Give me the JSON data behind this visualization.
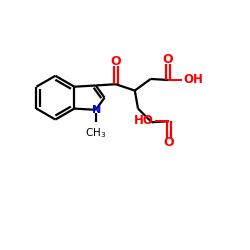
{
  "bg_color": "#ffffff",
  "bond_color": "#000000",
  "n_color": "#0000ff",
  "o_color": "#ff0000",
  "line_width": 1.6,
  "figsize": [
    2.5,
    2.5
  ],
  "dpi": 100,
  "xlim": [
    0,
    10
  ],
  "ylim": [
    0,
    10
  ]
}
